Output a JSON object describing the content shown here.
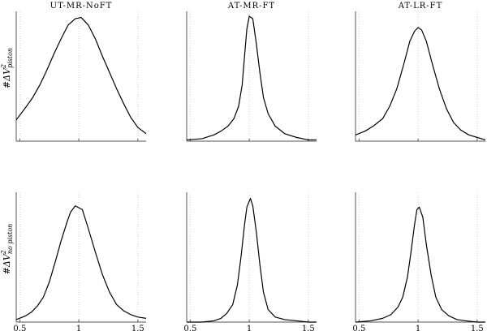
{
  "chart_data": {
    "type": "line",
    "column_titles": [
      "UT-MR-NoFT",
      "AT-MR-FT",
      "AT-LR-FT"
    ],
    "row_labels": [
      {
        "base": "#ΔV",
        "sup": "2",
        "sub": "piston"
      },
      {
        "base": "#ΔV",
        "sup": "2",
        "sub": "no piston"
      }
    ],
    "x_ticks": [
      0.5,
      1,
      1.5
    ],
    "x_tick_labels": [
      "0.5",
      "1",
      "1.5"
    ],
    "xlim": [
      0.47,
      1.57
    ],
    "ylim": [
      0,
      1
    ],
    "grid": "vertical dotted at x ticks",
    "panels": [
      {
        "row": 0,
        "col": 0,
        "x": [
          0.47,
          0.55,
          0.61,
          0.67,
          0.73,
          0.79,
          0.85,
          0.91,
          0.97,
          1.02,
          1.08,
          1.14,
          1.2,
          1.26,
          1.32,
          1.38,
          1.44,
          1.5,
          1.57
        ],
        "y": [
          0.17,
          0.27,
          0.35,
          0.45,
          0.57,
          0.7,
          0.82,
          0.93,
          0.98,
          0.99,
          0.93,
          0.82,
          0.68,
          0.55,
          0.42,
          0.3,
          0.19,
          0.11,
          0.06
        ]
      },
      {
        "row": 0,
        "col": 1,
        "x": [
          0.47,
          0.6,
          0.7,
          0.76,
          0.82,
          0.87,
          0.91,
          0.94,
          0.96,
          0.98,
          1.0,
          1.03,
          1.06,
          1.09,
          1.12,
          1.16,
          1.22,
          1.3,
          1.4,
          1.5,
          1.57
        ],
        "y": [
          0.01,
          0.02,
          0.05,
          0.08,
          0.12,
          0.18,
          0.28,
          0.45,
          0.68,
          0.9,
          1.0,
          0.98,
          0.78,
          0.55,
          0.35,
          0.22,
          0.12,
          0.06,
          0.03,
          0.01,
          0.01
        ]
      },
      {
        "row": 0,
        "col": 2,
        "x": [
          0.47,
          0.55,
          0.62,
          0.7,
          0.76,
          0.82,
          0.88,
          0.93,
          0.97,
          1.0,
          1.03,
          1.07,
          1.12,
          1.18,
          1.24,
          1.3,
          1.36,
          1.43,
          1.5,
          1.57
        ],
        "y": [
          0.05,
          0.08,
          0.12,
          0.18,
          0.28,
          0.42,
          0.62,
          0.8,
          0.88,
          0.91,
          0.89,
          0.8,
          0.62,
          0.42,
          0.26,
          0.15,
          0.09,
          0.05,
          0.03,
          0.01
        ]
      },
      {
        "row": 1,
        "col": 0,
        "x": [
          0.47,
          0.55,
          0.6,
          0.65,
          0.7,
          0.75,
          0.8,
          0.85,
          0.9,
          0.93,
          0.97,
          1.03,
          1.08,
          1.14,
          1.2,
          1.26,
          1.32,
          1.38,
          1.44,
          1.5,
          1.57
        ],
        "y": [
          0.02,
          0.05,
          0.08,
          0.13,
          0.2,
          0.32,
          0.48,
          0.65,
          0.8,
          0.88,
          0.93,
          0.9,
          0.75,
          0.56,
          0.38,
          0.24,
          0.14,
          0.09,
          0.06,
          0.04,
          0.03
        ]
      },
      {
        "row": 1,
        "col": 1,
        "x": [
          0.47,
          0.6,
          0.7,
          0.76,
          0.81,
          0.86,
          0.9,
          0.93,
          0.96,
          0.98,
          1.01,
          1.03,
          1.06,
          1.09,
          1.12,
          1.16,
          1.22,
          1.3,
          1.4,
          1.5,
          1.57
        ],
        "y": [
          0.0,
          0.0,
          0.01,
          0.03,
          0.07,
          0.14,
          0.3,
          0.52,
          0.78,
          0.92,
          0.99,
          0.93,
          0.72,
          0.46,
          0.24,
          0.1,
          0.04,
          0.02,
          0.01,
          0.0,
          0.0
        ]
      },
      {
        "row": 1,
        "col": 2,
        "x": [
          0.47,
          0.6,
          0.7,
          0.77,
          0.83,
          0.87,
          0.91,
          0.94,
          0.97,
          0.99,
          1.01,
          1.04,
          1.07,
          1.11,
          1.15,
          1.2,
          1.26,
          1.33,
          1.4,
          1.5,
          1.57
        ],
        "y": [
          0.0,
          0.01,
          0.03,
          0.06,
          0.12,
          0.2,
          0.36,
          0.56,
          0.78,
          0.9,
          0.92,
          0.84,
          0.62,
          0.38,
          0.2,
          0.1,
          0.05,
          0.02,
          0.01,
          0.0,
          0.0
        ]
      }
    ]
  }
}
